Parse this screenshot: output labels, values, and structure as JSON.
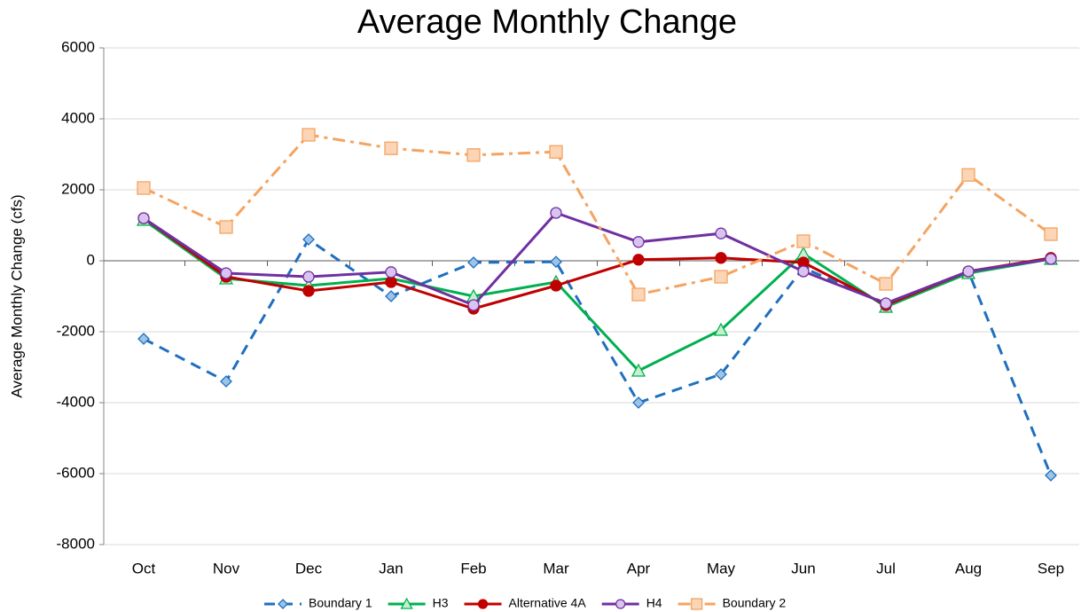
{
  "chart_data": {
    "type": "line",
    "title": "Average Monthly Change",
    "y_label": "Average Monthly Change (cfs)",
    "categories": [
      "Oct",
      "Nov",
      "Dec",
      "Jan",
      "Feb",
      "Mar",
      "Apr",
      "May",
      "Jun",
      "Jul",
      "Aug",
      "Sep"
    ],
    "ylim": [
      -8000,
      6000
    ],
    "yticks": [
      -8000,
      -6000,
      -4000,
      -2000,
      0,
      2000,
      4000,
      6000
    ],
    "grid": true,
    "legend": "bottom",
    "series": [
      {
        "name": "Boundary 1",
        "color": "#1f6fbf",
        "marker": "diamond",
        "marker_fill": "#9dc3e6",
        "line_style": "dash",
        "values": [
          -2200,
          -3400,
          600,
          -1000,
          -50,
          -30,
          -4000,
          -3200,
          -200,
          -1200,
          -300,
          -6050
        ]
      },
      {
        "name": "H3",
        "color": "#00b050",
        "marker": "triangle",
        "marker_fill": "#c6efce",
        "line_style": "solid",
        "values": [
          1150,
          -500,
          -700,
          -500,
          -1000,
          -600,
          -3100,
          -1950,
          200,
          -1300,
          -350,
          50
        ]
      },
      {
        "name": "Alternative 4A",
        "color": "#c00000",
        "marker": "circle",
        "marker_fill": "#c00000",
        "line_style": "solid",
        "values": [
          1200,
          -450,
          -850,
          -600,
          -1350,
          -700,
          30,
          80,
          -50,
          -1250,
          -300,
          80
        ]
      },
      {
        "name": "H4",
        "color": "#7030a0",
        "marker": "circle",
        "marker_fill": "#d9c3ef",
        "line_style": "solid",
        "values": [
          1200,
          -350,
          -450,
          -320,
          -1250,
          1350,
          530,
          770,
          -300,
          -1200,
          -300,
          50
        ]
      },
      {
        "name": "Boundary 2",
        "color": "#f4a460",
        "marker": "square",
        "marker_fill": "#fbd5b5",
        "line_style": "dashdot",
        "values": [
          2050,
          950,
          3550,
          3170,
          2980,
          3070,
          -950,
          -450,
          550,
          -650,
          2420,
          750
        ]
      }
    ]
  }
}
